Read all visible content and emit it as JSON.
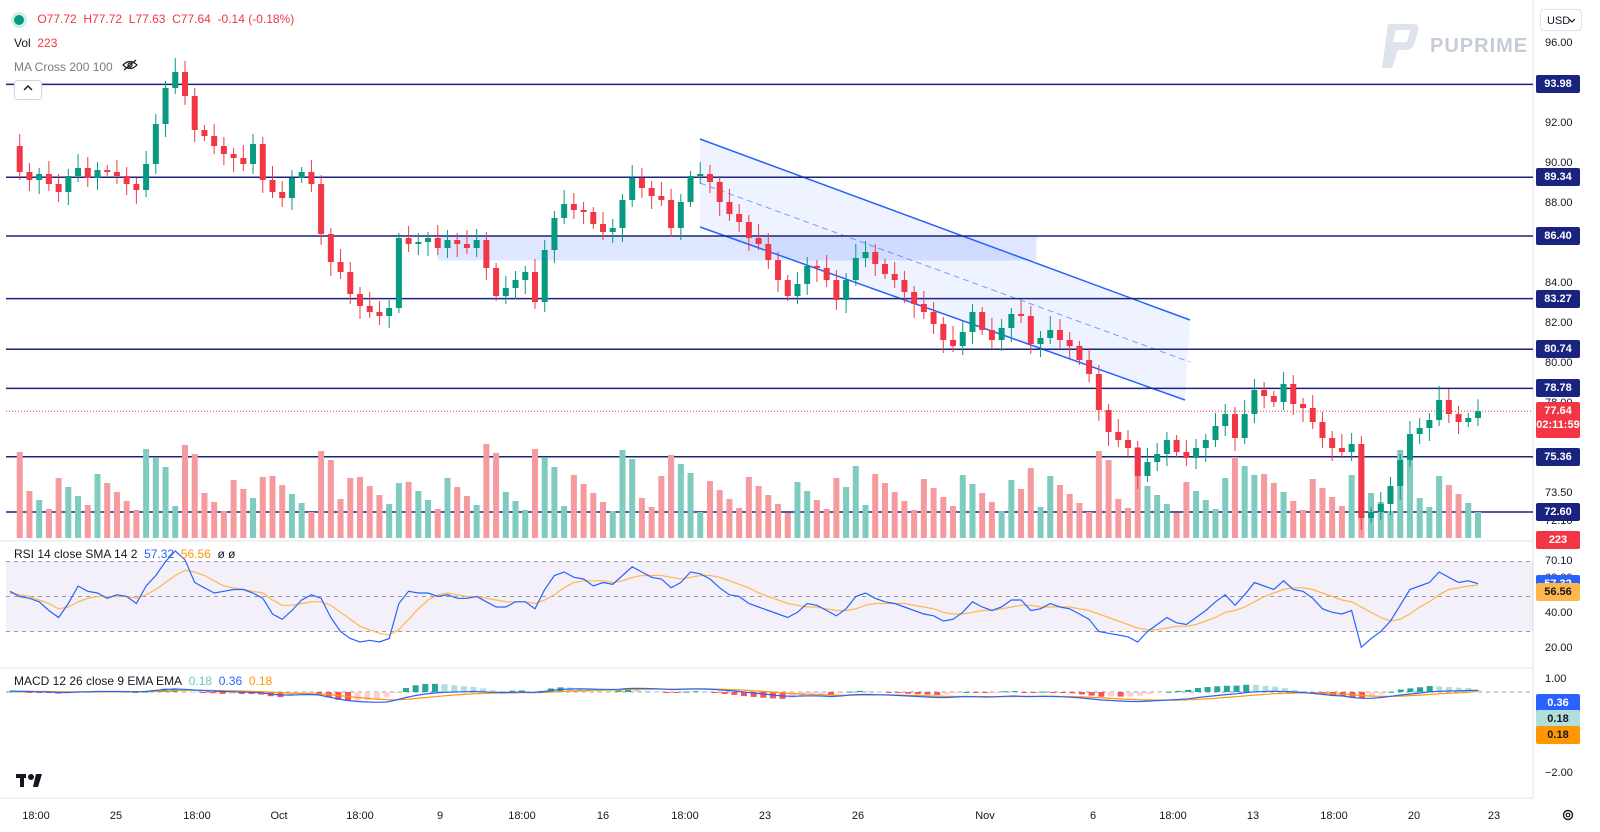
{
  "legend": {
    "ohlc": {
      "open": "O77.72",
      "high": "H77.72",
      "low": "L77.63",
      "close": "C77.64",
      "change": "-0.14 (-0.18%)"
    },
    "volume": {
      "label": "Vol",
      "value": "223"
    },
    "ma_cross": "MA Cross 200 100",
    "rsi": {
      "label": "RSI 14 close SMA 14 2",
      "value": "57.32",
      "sma": "56.56",
      "extra": "ø ø"
    },
    "macd": {
      "label": "MACD 12 26 close 9 EMA EMA",
      "hist": "0.18",
      "macd": "0.36",
      "signal": "0.18"
    }
  },
  "currency": "USD",
  "brand": "PUPRIME",
  "collapse_icon": "chevron-up-icon",
  "chart_data": {
    "type": "candlestick",
    "price_axis_ticks": [
      "96.00",
      "92.00",
      "90.00",
      "88.00",
      "84.00",
      "82.00",
      "80.00",
      "78.00",
      "76.50",
      "75.50",
      "73.50",
      "72.10",
      "70.10"
    ],
    "horizontal_levels": [
      "93.98",
      "89.34",
      "86.40",
      "83.27",
      "80.74",
      "78.78",
      "75.36",
      "72.60"
    ],
    "last_price": "77.64",
    "countdown": "02:11:59",
    "volume_last": "223",
    "rsi_axis_ticks": [
      "80.00",
      "60.00",
      "40.00",
      "20.00"
    ],
    "rsi_last": "57.32",
    "rsi_sma_last": "56.56",
    "macd_axis_ticks": [
      "1.00",
      "−1.00",
      "−2.00"
    ],
    "macd_last": "0.36",
    "macd_signal_last": "0.18",
    "macd_hist_last": "0.18",
    "time_axis": [
      "18:00",
      "25",
      "18:00",
      "Oct",
      "18:00",
      "9",
      "18:00",
      "16",
      "18:00",
      "23",
      "26",
      "Nov",
      "6",
      "18:00",
      "13",
      "18:00",
      "20",
      "23"
    ],
    "price_path": [
      90.9,
      89.6,
      89.2,
      89.5,
      89.0,
      88.6,
      89.4,
      89.8,
      89.3,
      89.7,
      89.6,
      89.4,
      89.0,
      88.7,
      90.0,
      92.0,
      93.8,
      94.6,
      93.4,
      91.7,
      91.4,
      90.9,
      90.5,
      90.3,
      90.0,
      91.0,
      89.2,
      88.6,
      88.3,
      89.3,
      89.6,
      89.0,
      86.5,
      85.1,
      84.6,
      83.5,
      82.9,
      82.6,
      82.4,
      82.8,
      86.3,
      86.0,
      86.1,
      86.3,
      85.8,
      86.2,
      86.0,
      85.8,
      86.2,
      84.8,
      83.4,
      83.8,
      84.2,
      84.6,
      83.1,
      85.7,
      87.3,
      88.0,
      87.7,
      87.6,
      87.0,
      86.6,
      86.8,
      88.2,
      89.3,
      88.8,
      88.4,
      88.2,
      86.8,
      88.1,
      89.4,
      89.5,
      89.1,
      88.1,
      87.5,
      87.1,
      86.3,
      86.0,
      85.2,
      84.2,
      83.4,
      84.0,
      84.9,
      84.8,
      84.2,
      83.2,
      84.2,
      85.3,
      85.6,
      85.0,
      84.5,
      84.2,
      83.6,
      83.0,
      82.6,
      82.0,
      81.2,
      80.9,
      81.6,
      82.6,
      81.7,
      81.2,
      81.8,
      82.5,
      82.4,
      81.0,
      81.3,
      81.7,
      81.2,
      80.9,
      80.2,
      79.5,
      77.7,
      76.6,
      76.2,
      75.8,
      74.4,
      75.1,
      75.5,
      76.2,
      75.6,
      75.3,
      75.8,
      76.2,
      76.9,
      77.5,
      76.3,
      77.5,
      78.7,
      78.4,
      78.1,
      79.0,
      78.0,
      77.8,
      77.1,
      76.3,
      75.8,
      75.6,
      76.0,
      72.3,
      72.6,
      73.0,
      73.9,
      75.2,
      76.5,
      76.8,
      77.2,
      78.2,
      77.5,
      77.1,
      77.3,
      77.64
    ],
    "rsi_path": [
      53,
      50,
      49,
      47,
      42,
      38,
      46,
      56,
      53,
      52,
      49,
      51,
      50,
      46,
      56,
      62,
      70,
      76,
      71,
      58,
      55,
      52,
      53,
      54,
      54,
      52,
      49,
      40,
      37,
      42,
      48,
      51,
      49,
      38,
      30,
      26,
      24,
      25,
      24,
      26,
      46,
      53,
      52,
      52,
      50,
      51,
      49,
      49,
      50,
      47,
      44,
      44,
      47,
      47,
      43,
      54,
      62,
      64,
      61,
      60,
      56,
      58,
      57,
      62,
      67,
      64,
      61,
      60,
      55,
      58,
      64,
      63,
      60,
      55,
      51,
      50,
      46,
      44,
      42,
      40,
      38,
      41,
      46,
      45,
      42,
      39,
      43,
      50,
      52,
      49,
      47,
      46,
      44,
      42,
      40,
      39,
      36,
      37,
      41,
      47,
      44,
      42,
      44,
      48,
      48,
      42,
      43,
      46,
      44,
      43,
      40,
      37,
      30,
      29,
      28,
      27,
      24,
      30,
      34,
      38,
      35,
      34,
      38,
      42,
      47,
      51,
      45,
      51,
      58,
      56,
      54,
      59,
      54,
      53,
      49,
      43,
      41,
      40,
      42,
      21,
      26,
      30,
      36,
      45,
      54,
      56,
      58,
      64,
      61,
      58,
      59,
      57.32
    ],
    "rsi_sma_path": [
      52,
      51,
      50,
      48,
      46,
      43,
      44,
      47,
      49,
      50,
      50,
      50,
      50,
      49,
      51,
      54,
      58,
      62,
      65,
      64,
      62,
      59,
      56,
      55,
      54,
      53,
      52,
      48,
      45,
      45,
      46,
      47,
      47,
      45,
      41,
      37,
      33,
      31,
      29,
      28,
      31,
      37,
      43,
      48,
      51,
      52,
      51,
      50,
      50,
      49,
      48,
      47,
      47,
      47,
      46,
      48,
      51,
      55,
      58,
      59,
      59,
      59,
      58,
      59,
      61,
      62,
      62,
      62,
      61,
      60,
      61,
      62,
      62,
      61,
      59,
      57,
      55,
      52,
      50,
      48,
      46,
      45,
      44,
      44,
      43,
      42,
      42,
      43,
      45,
      46,
      46,
      46,
      46,
      45,
      44,
      43,
      41,
      40,
      40,
      41,
      42,
      42,
      43,
      44,
      45,
      45,
      44,
      44,
      44,
      44,
      43,
      42,
      40,
      38,
      36,
      34,
      32,
      31,
      31,
      32,
      33,
      33,
      34,
      36,
      38,
      41,
      42,
      44,
      47,
      50,
      52,
      54,
      55,
      55,
      54,
      52,
      50,
      48,
      47,
      44,
      41,
      38,
      36,
      37,
      40,
      44,
      47,
      51,
      54,
      55,
      56,
      56.56
    ],
    "macd_path": [
      0.2,
      0.15,
      0.1,
      0.05,
      0.0,
      -0.1,
      -0.1,
      0.0,
      0.05,
      0.1,
      0.1,
      0.1,
      0.08,
      0.05,
      0.1,
      0.3,
      0.5,
      0.6,
      0.55,
      0.4,
      0.3,
      0.2,
      0.1,
      0.05,
      0.0,
      -0.05,
      -0.15,
      -0.4,
      -0.6,
      -0.6,
      -0.55,
      -0.5,
      -0.6,
      -1.0,
      -1.4,
      -1.7,
      -1.9,
      -2.0,
      -2.05,
      -2.0,
      -1.6,
      -1.1,
      -0.7,
      -0.4,
      -0.2,
      -0.05,
      0.0,
      0.05,
      0.1,
      0.05,
      -0.05,
      -0.1,
      -0.05,
      0.0,
      -0.1,
      0.0,
      0.3,
      0.5,
      0.6,
      0.65,
      0.6,
      0.55,
      0.5,
      0.55,
      0.7,
      0.75,
      0.7,
      0.65,
      0.55,
      0.5,
      0.6,
      0.65,
      0.6,
      0.5,
      0.35,
      0.2,
      0.0,
      -0.2,
      -0.4,
      -0.6,
      -0.8,
      -0.85,
      -0.8,
      -0.75,
      -0.8,
      -0.9,
      -0.8,
      -0.6,
      -0.5,
      -0.5,
      -0.55,
      -0.6,
      -0.7,
      -0.8,
      -0.9,
      -1.0,
      -1.1,
      -1.1,
      -1.0,
      -0.9,
      -0.95,
      -1.0,
      -0.95,
      -0.85,
      -0.8,
      -0.9,
      -0.9,
      -0.85,
      -0.9,
      -0.95,
      -1.05,
      -1.2,
      -1.4,
      -1.6,
      -1.7,
      -1.8,
      -1.9,
      -1.9,
      -1.8,
      -1.7,
      -1.6,
      -1.5,
      -1.35,
      -1.1,
      -0.9,
      -0.7,
      -0.5,
      -0.35,
      -0.1,
      0.05,
      0.1,
      0.15,
      0.1,
      0.0,
      -0.1,
      -0.3,
      -0.5,
      -0.7,
      -0.8,
      -1.1,
      -1.25,
      -1.25,
      -1.1,
      -0.85,
      -0.6,
      -0.4,
      -0.2,
      0.05,
      0.15,
      0.2,
      0.25,
      0.3,
      0.36
    ],
    "macd_signal_path": [
      0.15,
      0.15,
      0.13,
      0.11,
      0.09,
      0.05,
      0.02,
      0.01,
      0.02,
      0.03,
      0.05,
      0.06,
      0.07,
      0.06,
      0.07,
      0.12,
      0.2,
      0.28,
      0.34,
      0.35,
      0.34,
      0.31,
      0.27,
      0.22,
      0.18,
      0.13,
      0.08,
      -0.02,
      -0.14,
      -0.23,
      -0.3,
      -0.34,
      -0.39,
      -0.51,
      -0.69,
      -0.89,
      -1.09,
      -1.27,
      -1.43,
      -1.54,
      -1.55,
      -1.46,
      -1.31,
      -1.13,
      -0.94,
      -0.76,
      -0.61,
      -0.48,
      -0.36,
      -0.28,
      -0.23,
      -0.2,
      -0.17,
      -0.14,
      -0.13,
      -0.1,
      -0.02,
      0.08,
      0.19,
      0.28,
      0.34,
      0.38,
      0.4,
      0.43,
      0.48,
      0.54,
      0.57,
      0.59,
      0.58,
      0.56,
      0.57,
      0.58,
      0.59,
      0.57,
      0.53,
      0.46,
      0.37,
      0.25,
      0.12,
      -0.02,
      -0.18,
      -0.31,
      -0.41,
      -0.48,
      -0.54,
      -0.61,
      -0.65,
      -0.64,
      -0.61,
      -0.59,
      -0.58,
      -0.59,
      -0.61,
      -0.65,
      -0.7,
      -0.76,
      -0.83,
      -0.88,
      -0.9,
      -0.9,
      -0.91,
      -0.93,
      -0.93,
      -0.92,
      -0.89,
      -0.89,
      -0.89,
      -0.88,
      -0.88,
      -0.9,
      -0.93,
      -0.98,
      -1.07,
      -1.17,
      -1.28,
      -1.38,
      -1.48,
      -1.56,
      -1.61,
      -1.62,
      -1.62,
      -1.6,
      -1.55,
      -1.46,
      -1.35,
      -1.22,
      -1.07,
      -0.93,
      -0.76,
      -0.6,
      -0.46,
      -0.34,
      -0.25,
      -0.2,
      -0.18,
      -0.2,
      -0.26,
      -0.35,
      -0.44,
      -0.57,
      -0.71,
      -0.82,
      -0.88,
      -0.87,
      -0.82,
      -0.73,
      -0.63,
      -0.49,
      -0.36,
      -0.25,
      -0.15,
      -0.06,
      0.18
    ]
  }
}
